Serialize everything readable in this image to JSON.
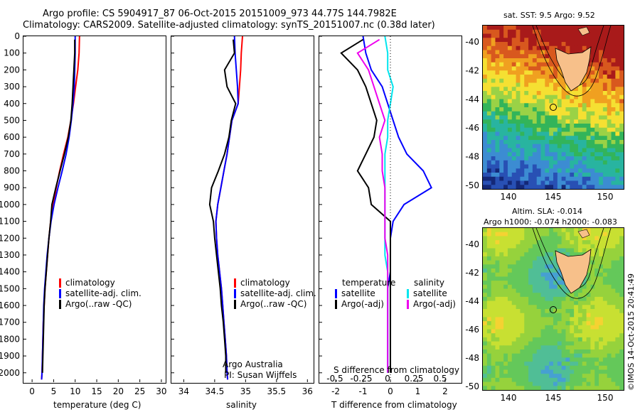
{
  "header": {
    "line1": "Argo profile: CS 5904917_87 06-Oct-2015 20151009_973 44.77S 144.7982E",
    "line2": "Climatology: CARS2009. Satellite-adjusted climatology: synTS_20151007.nc (0.38d later)"
  },
  "colors": {
    "climatology": "#ff0000",
    "satellite": "#0000ff",
    "argo": "#000000",
    "salinity_satellite": "#00e5ee",
    "salinity_argo": "#ee00ee",
    "land": "#f7c08a"
  },
  "depth_ticks": [
    "0",
    "100",
    "200",
    "300",
    "400",
    "500",
    "600",
    "700",
    "800",
    "900",
    "1000",
    "1100",
    "1200",
    "1300",
    "1400",
    "1500",
    "1600",
    "1700",
    "1800",
    "1900",
    "2000"
  ],
  "chart_data": [
    {
      "type": "line",
      "xlabel": "temperature (deg C)",
      "ylabel": "",
      "xlim": [
        -2,
        31
      ],
      "ylim": [
        2060,
        0
      ],
      "xticks": [
        "0",
        "5",
        "10",
        "15",
        "20",
        "25",
        "30"
      ],
      "legend": [
        "climatology",
        "satellite-adj. clim.",
        "Argo(..raw -QC)"
      ],
      "series": [
        {
          "name": "climatology",
          "color": "red",
          "x": [
            11.0,
            10.9,
            10.6,
            10.1,
            9.6,
            9.0,
            8.3,
            7.3,
            6.4,
            5.6,
            4.9,
            4.3,
            3.9,
            3.6,
            3.3,
            3.0,
            2.8,
            2.6,
            2.5,
            2.4,
            2.3,
            2.2
          ],
          "y": [
            0,
            100,
            200,
            300,
            400,
            500,
            600,
            700,
            800,
            900,
            1000,
            1100,
            1200,
            1300,
            1400,
            1500,
            1600,
            1700,
            1800,
            1900,
            2000,
            2040
          ]
        },
        {
          "name": "satellite-adj. clim.",
          "color": "blue",
          "x": [
            10.0,
            10.0,
            9.9,
            9.8,
            9.5,
            9.1,
            8.6,
            7.9,
            7.0,
            6.0,
            5.1,
            4.4,
            3.9,
            3.5,
            3.2,
            2.9,
            2.7,
            2.6,
            2.5,
            2.4,
            2.3,
            2.2
          ],
          "y": [
            0,
            100,
            200,
            300,
            400,
            500,
            600,
            700,
            800,
            900,
            1000,
            1100,
            1200,
            1300,
            1400,
            1500,
            1600,
            1700,
            1800,
            1900,
            2000,
            2040
          ]
        },
        {
          "name": "Argo(..raw -QC)",
          "color": "black",
          "x": [
            9.9,
            9.9,
            9.7,
            9.5,
            9.3,
            9.0,
            8.4,
            7.5,
            6.5,
            5.5,
            4.6,
            4.3,
            3.9,
            3.6,
            3.3,
            3.0,
            2.8,
            2.7,
            2.6,
            2.5,
            2.4
          ],
          "y": [
            20,
            100,
            200,
            300,
            400,
            500,
            600,
            700,
            800,
            900,
            1000,
            1100,
            1200,
            1300,
            1400,
            1500,
            1600,
            1700,
            1800,
            1900,
            2000
          ]
        }
      ]
    },
    {
      "type": "line",
      "xlabel": "salinity",
      "ylabel": "",
      "xlim": [
        33.8,
        36.1
      ],
      "ylim": [
        2060,
        0
      ],
      "xticks": [
        "34",
        "34.5",
        "35",
        "35.5",
        "36"
      ],
      "legend": [
        "climatology",
        "satellite-adj. clim.",
        "Argo(..raw -QC)"
      ],
      "annotation": [
        "Argo Australia",
        "PI: Susan Wijffels"
      ],
      "series": [
        {
          "name": "climatology",
          "color": "red",
          "x": [
            34.95,
            34.93,
            34.92,
            34.9,
            34.88,
            34.78,
            34.74,
            34.7,
            34.65,
            34.6,
            34.55,
            34.52,
            34.53,
            34.55,
            34.58,
            34.61,
            34.63,
            34.65,
            34.67,
            34.69,
            34.7,
            34.71
          ],
          "y": [
            0,
            100,
            200,
            300,
            400,
            500,
            600,
            700,
            800,
            900,
            1000,
            1100,
            1200,
            1300,
            1400,
            1500,
            1600,
            1700,
            1800,
            1900,
            2000,
            2040
          ]
        },
        {
          "name": "satellite-adj. clim.",
          "color": "blue",
          "x": [
            34.82,
            34.83,
            34.85,
            34.87,
            34.88,
            34.78,
            34.74,
            34.7,
            34.65,
            34.6,
            34.55,
            34.52,
            34.53,
            34.55,
            34.58,
            34.61,
            34.63,
            34.65,
            34.67,
            34.69,
            34.7,
            34.71
          ],
          "y": [
            0,
            100,
            200,
            300,
            400,
            500,
            600,
            700,
            800,
            900,
            1000,
            1100,
            1200,
            1300,
            1400,
            1500,
            1600,
            1700,
            1800,
            1900,
            2000,
            2040
          ]
        },
        {
          "name": "Argo(..raw -QC)",
          "color": "black",
          "x": [
            34.8,
            34.82,
            34.66,
            34.7,
            34.84,
            34.77,
            34.73,
            34.66,
            34.56,
            34.45,
            34.42,
            34.48,
            34.5,
            34.53,
            34.56,
            34.59,
            34.61,
            34.64,
            34.66,
            34.68,
            34.68
          ],
          "y": [
            20,
            100,
            200,
            300,
            400,
            500,
            600,
            700,
            800,
            900,
            1000,
            1100,
            1200,
            1300,
            1400,
            1500,
            1600,
            1700,
            1800,
            1900,
            2000
          ]
        }
      ]
    },
    {
      "type": "line",
      "xlabel": "T difference from climatology",
      "xlabel2": "S difference from climatology",
      "xlim": [
        -2.6,
        2.6
      ],
      "ylim": [
        2060,
        0
      ],
      "xticks": [
        "-2",
        "-1",
        "0",
        "1",
        "2"
      ],
      "xticks_s": [
        "-0.5",
        "-0.25",
        "0",
        "0.25",
        "0.5"
      ],
      "legend_temperature": [
        "temperature",
        "satellite",
        "Argo(-adj)"
      ],
      "legend_salinity": [
        "salinity",
        "satellite",
        "Argo(-adj)"
      ],
      "series": [
        {
          "name": "satellite",
          "color": "blue",
          "x": [
            -1.0,
            -0.9,
            -0.7,
            -0.3,
            -0.1,
            0.1,
            0.3,
            0.6,
            1.2,
            1.5,
            0.5,
            0.1,
            0.0,
            0.0,
            0.0,
            -0.1,
            -0.1,
            -0.1,
            -0.1,
            -0.1,
            -0.1
          ],
          "y": [
            0,
            100,
            200,
            300,
            400,
            500,
            600,
            700,
            800,
            900,
            1000,
            1100,
            1200,
            1300,
            1400,
            1500,
            1600,
            1700,
            1800,
            1900,
            2000
          ]
        },
        {
          "name": "Argo(-adj)",
          "color": "black",
          "x": [
            -1.0,
            -1.8,
            -1.2,
            -0.9,
            -0.7,
            -0.5,
            -0.6,
            -0.9,
            -1.2,
            -0.8,
            -0.7,
            0.0,
            0.0,
            0.0,
            0.0,
            0.0,
            0.0,
            0.0,
            0.0,
            0.0,
            0.0
          ],
          "y": [
            20,
            100,
            200,
            300,
            400,
            500,
            600,
            700,
            800,
            900,
            1000,
            1100,
            1200,
            1300,
            1400,
            1500,
            1600,
            1700,
            1800,
            1900,
            2000
          ]
        },
        {
          "name": "salinity satellite",
          "color": "cyan",
          "x": [
            -0.2,
            -0.1,
            -0.1,
            0.1,
            0.0,
            -0.1,
            -0.1,
            -0.2,
            -0.2,
            -0.2,
            -0.2,
            -0.2,
            -0.2,
            -0.2,
            -0.1,
            -0.1,
            -0.1,
            -0.1,
            -0.1,
            -0.1,
            -0.1
          ],
          "y": [
            0,
            100,
            200,
            300,
            400,
            500,
            600,
            700,
            800,
            900,
            1000,
            1100,
            1200,
            1300,
            1400,
            1500,
            1600,
            1700,
            1800,
            1900,
            2000
          ]
        },
        {
          "name": "salinity Argo(-adj)",
          "color": "magenta",
          "x": [
            -0.4,
            -1.2,
            -0.8,
            -0.6,
            -0.4,
            -0.2,
            -0.4,
            -0.3,
            -0.3,
            -0.2,
            -0.2,
            -0.2,
            -0.2,
            -0.1,
            -0.1,
            -0.1,
            -0.1,
            -0.1,
            -0.1,
            -0.1,
            -0.1
          ],
          "y": [
            20,
            100,
            200,
            300,
            400,
            500,
            600,
            700,
            800,
            900,
            1000,
            1100,
            1200,
            1300,
            1400,
            1500,
            1600,
            1700,
            1800,
            1900,
            2000
          ]
        }
      ]
    },
    {
      "type": "heatmap",
      "title": "sat. SST: 9.5 Argo: 9.52",
      "xticks": [
        "140",
        "145",
        "150"
      ],
      "yticks": [
        "-40",
        "-42",
        "-44",
        "-46",
        "-48",
        "-50"
      ]
    },
    {
      "type": "heatmap",
      "title_line1": "Altim. SLA: -0.014",
      "title_line2": "Argo h1000: -0.074 h2000: -0.083",
      "xticks": [
        "140",
        "145",
        "150"
      ],
      "yticks": [
        "-40",
        "-42",
        "-44",
        "-46",
        "-48",
        "-50"
      ]
    }
  ],
  "side_label": "©IMOS 14-Oct-2015 20:41:49"
}
